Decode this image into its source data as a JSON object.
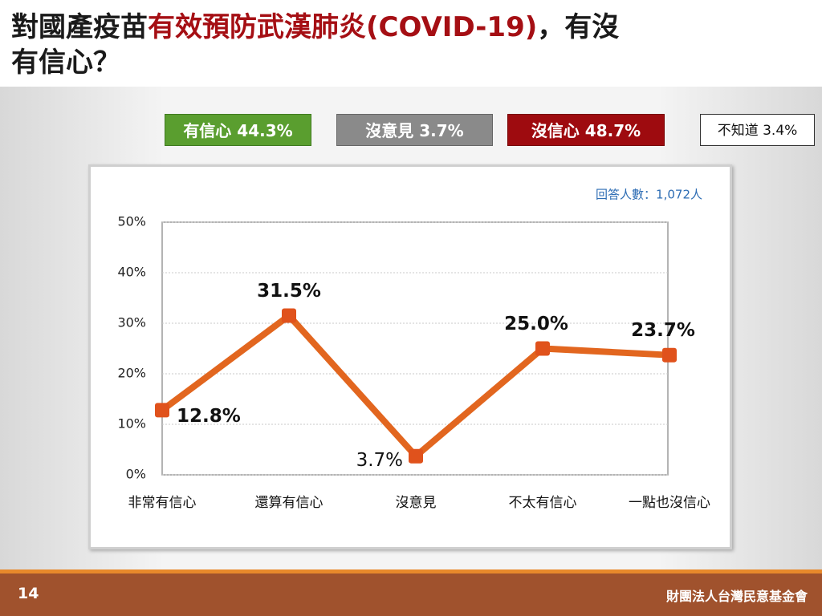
{
  "header": {
    "title_parts": [
      "對國產疫苗",
      "有效預防武漢肺炎(COVID-19)",
      "，有沒",
      "有信心？"
    ]
  },
  "summary": [
    "有信心 44.3%",
    "沒意見 3.7%",
    "沒信心 48.7%",
    "不知道 3.4%"
  ],
  "chart_data": {
    "type": "line",
    "annotation": "回答人數：1,072人",
    "categories": [
      "非常有信心",
      "還算有信心",
      "沒意見",
      "不太有信心",
      "一點也沒信心"
    ],
    "values": [
      12.8,
      31.5,
      3.7,
      25.0,
      23.7
    ],
    "value_labels": [
      "12.8%",
      "31.5%",
      "3.7%",
      "25.0%",
      "23.7%"
    ],
    "color": "#e2661f",
    "ylim": [
      0,
      50
    ],
    "yticks": [
      {
        "value": 0,
        "label": "0%"
      },
      {
        "value": 10,
        "label": "10%"
      },
      {
        "value": 20,
        "label": "20%"
      },
      {
        "value": 30,
        "label": "30%"
      },
      {
        "value": 40,
        "label": "40%"
      },
      {
        "value": 50,
        "label": "50%"
      }
    ],
    "grid": true
  },
  "footer": {
    "page": "14",
    "org": "財團法人台灣民意基金會"
  }
}
